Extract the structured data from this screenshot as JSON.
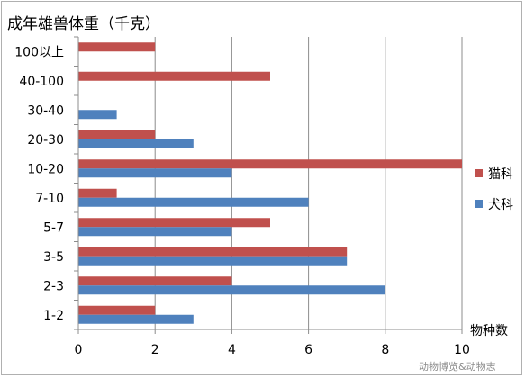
{
  "chart_data": {
    "type": "bar",
    "orientation": "horizontal",
    "title": "成年雄兽体重（千克）",
    "xlabel": "物种数",
    "ylabel": "",
    "xlim": [
      0,
      10
    ],
    "x_ticks": [
      0,
      2,
      4,
      6,
      8,
      10
    ],
    "grid": "vertical",
    "legend_position": "right",
    "categories": [
      "1-2",
      "2-3",
      "3-5",
      "5-7",
      "7-10",
      "10-20",
      "20-30",
      "30-40",
      "40-100",
      "100以上"
    ],
    "series": [
      {
        "name": "猫科",
        "color": "#c0504d",
        "values": [
          2,
          4,
          7,
          5,
          1,
          10,
          2,
          0,
          5,
          2
        ]
      },
      {
        "name": "犬科",
        "color": "#4f81bd",
        "values": [
          3,
          8,
          7,
          4,
          6,
          4,
          3,
          1,
          0,
          0
        ]
      }
    ]
  },
  "watermark": "动物博览&动物志"
}
